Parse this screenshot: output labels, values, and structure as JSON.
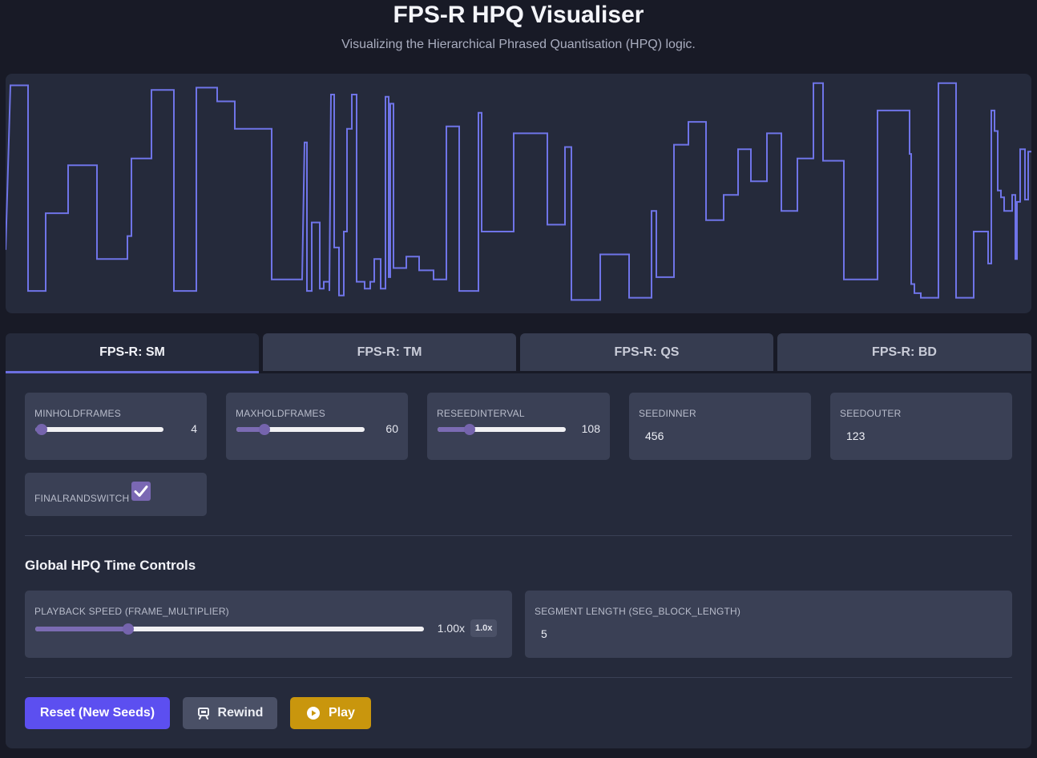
{
  "header": {
    "title": "FPS-R HPQ Visualiser",
    "subtitle": "Visualizing the Hierarchical Phrased Quantisation (HPQ) logic."
  },
  "colors": {
    "accent": "#6c6fe0",
    "signal": "#6f74e8",
    "slider": "#7b6bb3",
    "reset_button": "#5c4ff0",
    "play_button": "#c9960d"
  },
  "tabs": [
    {
      "label": "FPS-R: SM",
      "active": true
    },
    {
      "label": "FPS-R: TM",
      "active": false
    },
    {
      "label": "FPS-R: QS",
      "active": false
    },
    {
      "label": "FPS-R: BD",
      "active": false
    }
  ],
  "params": {
    "min_hold": {
      "label": "MINHOLDFRAMES",
      "value": "4",
      "fraction": 0.05
    },
    "max_hold": {
      "label": "MAXHOLDFRAMES",
      "value": "60",
      "fraction": 0.22
    },
    "reseed": {
      "label": "RESEEDINTERVAL",
      "value": "108",
      "fraction": 0.25
    },
    "seed_inner": {
      "label": "SEEDINNER",
      "value": "456"
    },
    "seed_outer": {
      "label": "SEEDOUTER",
      "value": "123"
    },
    "final_rand_switch": {
      "label": "FINALRANDSWITCH",
      "checked": true
    }
  },
  "global": {
    "title": "Global HPQ Time Controls",
    "speed": {
      "label": "PLAYBACK SPEED (FRAME_MULTIPLIER)",
      "value": "1.00x",
      "badge": "1.0x",
      "fraction": 0.24
    },
    "segment": {
      "label": "SEGMENT LENGTH (SEG_BLOCK_LENGTH)",
      "value": "5"
    }
  },
  "buttons": {
    "reset": "Reset (New Seeds)",
    "rewind": "Rewind",
    "play": "Play"
  },
  "signal": [
    [
      0,
      0.75
    ],
    [
      6,
      0.03
    ],
    [
      28,
      0.03
    ],
    [
      28,
      0.93
    ],
    [
      50,
      0.93
    ],
    [
      50,
      0.59
    ],
    [
      78,
      0.59
    ],
    [
      78,
      0.38
    ],
    [
      114,
      0.38
    ],
    [
      114,
      0.79
    ],
    [
      152,
      0.79
    ],
    [
      152,
      0.69
    ],
    [
      157,
      0.69
    ],
    [
      157,
      0.35
    ],
    [
      182,
      0.35
    ],
    [
      182,
      0.05
    ],
    [
      210,
      0.05
    ],
    [
      210,
      0.93
    ],
    [
      238,
      0.93
    ],
    [
      238,
      0.04
    ],
    [
      264,
      0.04
    ],
    [
      264,
      0.1
    ],
    [
      286,
      0.1
    ],
    [
      286,
      0.22
    ],
    [
      332,
      0.22
    ],
    [
      332,
      0.88
    ],
    [
      370,
      0.88
    ],
    [
      370,
      0.88
    ],
    [
      373,
      0.28
    ],
    [
      376,
      0.28
    ],
    [
      376,
      0.93
    ],
    [
      382,
      0.93
    ],
    [
      382,
      0.63
    ],
    [
      392,
      0.63
    ],
    [
      392,
      0.92
    ],
    [
      397,
      0.92
    ],
    [
      397,
      0.89
    ],
    [
      404,
      0.89
    ],
    [
      404,
      0.93
    ],
    [
      406,
      0.07
    ],
    [
      410,
      0.07
    ],
    [
      410,
      0.74
    ],
    [
      416,
      0.74
    ],
    [
      416,
      0.95
    ],
    [
      422,
      0.95
    ],
    [
      422,
      0.67
    ],
    [
      426,
      0.67
    ],
    [
      426,
      0.22
    ],
    [
      432,
      0.22
    ],
    [
      432,
      0.07
    ],
    [
      438,
      0.07
    ],
    [
      438,
      0.89
    ],
    [
      448,
      0.89
    ],
    [
      448,
      0.92
    ],
    [
      455,
      0.92
    ],
    [
      455,
      0.89
    ],
    [
      460,
      0.89
    ],
    [
      460,
      0.79
    ],
    [
      468,
      0.79
    ],
    [
      468,
      0.92
    ],
    [
      474,
      0.92
    ],
    [
      474,
      0.08
    ],
    [
      478,
      0.08
    ],
    [
      478,
      0.79
    ],
    [
      478,
      0.87
    ],
    [
      480,
      0.87
    ],
    [
      480,
      0.11
    ],
    [
      484,
      0.11
    ],
    [
      484,
      0.83
    ],
    [
      500,
      0.83
    ],
    [
      500,
      0.78
    ],
    [
      516,
      0.78
    ],
    [
      516,
      0.84
    ],
    [
      534,
      0.84
    ],
    [
      534,
      0.88
    ],
    [
      550,
      0.88
    ],
    [
      550,
      0.21
    ],
    [
      566,
      0.21
    ],
    [
      566,
      0.93
    ],
    [
      590,
      0.93
    ],
    [
      590,
      0.15
    ],
    [
      594,
      0.15
    ],
    [
      594,
      0.67
    ],
    [
      634,
      0.67
    ],
    [
      634,
      0.24
    ],
    [
      676,
      0.24
    ],
    [
      676,
      0.64
    ],
    [
      698,
      0.64
    ],
    [
      698,
      0.3
    ],
    [
      706,
      0.3
    ],
    [
      706,
      0.97
    ],
    [
      742,
      0.97
    ],
    [
      742,
      0.77
    ],
    [
      778,
      0.77
    ],
    [
      778,
      0.96
    ],
    [
      806,
      0.96
    ],
    [
      806,
      0.58
    ],
    [
      812,
      0.58
    ],
    [
      812,
      0.87
    ],
    [
      834,
      0.87
    ],
    [
      834,
      0.29
    ],
    [
      852,
      0.29
    ],
    [
      852,
      0.19
    ],
    [
      874,
      0.19
    ],
    [
      874,
      0.62
    ],
    [
      896,
      0.62
    ],
    [
      896,
      0.51
    ],
    [
      914,
      0.51
    ],
    [
      914,
      0.31
    ],
    [
      930,
      0.31
    ],
    [
      930,
      0.45
    ],
    [
      950,
      0.45
    ],
    [
      950,
      0.24
    ],
    [
      968,
      0.24
    ],
    [
      968,
      0.58
    ],
    [
      988,
      0.58
    ],
    [
      988,
      0.35
    ],
    [
      1008,
      0.35
    ],
    [
      1008,
      0.02
    ],
    [
      1020,
      0.02
    ],
    [
      1020,
      0.36
    ],
    [
      1046,
      0.36
    ],
    [
      1046,
      0.88
    ],
    [
      1088,
      0.88
    ],
    [
      1088,
      0.14
    ],
    [
      1128,
      0.14
    ],
    [
      1128,
      0.33
    ],
    [
      1130,
      0.33
    ],
    [
      1130,
      0.9
    ],
    [
      1134,
      0.9
    ],
    [
      1134,
      0.94
    ],
    [
      1142,
      0.94
    ],
    [
      1142,
      0.96
    ],
    [
      1164,
      0.96
    ],
    [
      1164,
      0.02
    ],
    [
      1186,
      0.02
    ],
    [
      1186,
      0.96
    ],
    [
      1208,
      0.96
    ],
    [
      1208,
      0.67
    ],
    [
      1226,
      0.67
    ],
    [
      1226,
      0.81
    ],
    [
      1230,
      0.81
    ],
    [
      1230,
      0.14
    ],
    [
      1234,
      0.14
    ],
    [
      1234,
      0.23
    ],
    [
      1238,
      0.23
    ],
    [
      1238,
      0.49
    ],
    [
      1242,
      0.49
    ],
    [
      1242,
      0.52
    ],
    [
      1246,
      0.52
    ],
    [
      1246,
      0.58
    ],
    [
      1256,
      0.58
    ],
    [
      1256,
      0.51
    ],
    [
      1260,
      0.51
    ],
    [
      1260,
      0.79
    ],
    [
      1262,
      0.79
    ],
    [
      1262,
      0.54
    ],
    [
      1266,
      0.54
    ],
    [
      1266,
      0.31
    ],
    [
      1272,
      0.31
    ],
    [
      1272,
      0.53
    ],
    [
      1276,
      0.53
    ],
    [
      1276,
      0.32
    ],
    [
      1280,
      0.32
    ]
  ]
}
